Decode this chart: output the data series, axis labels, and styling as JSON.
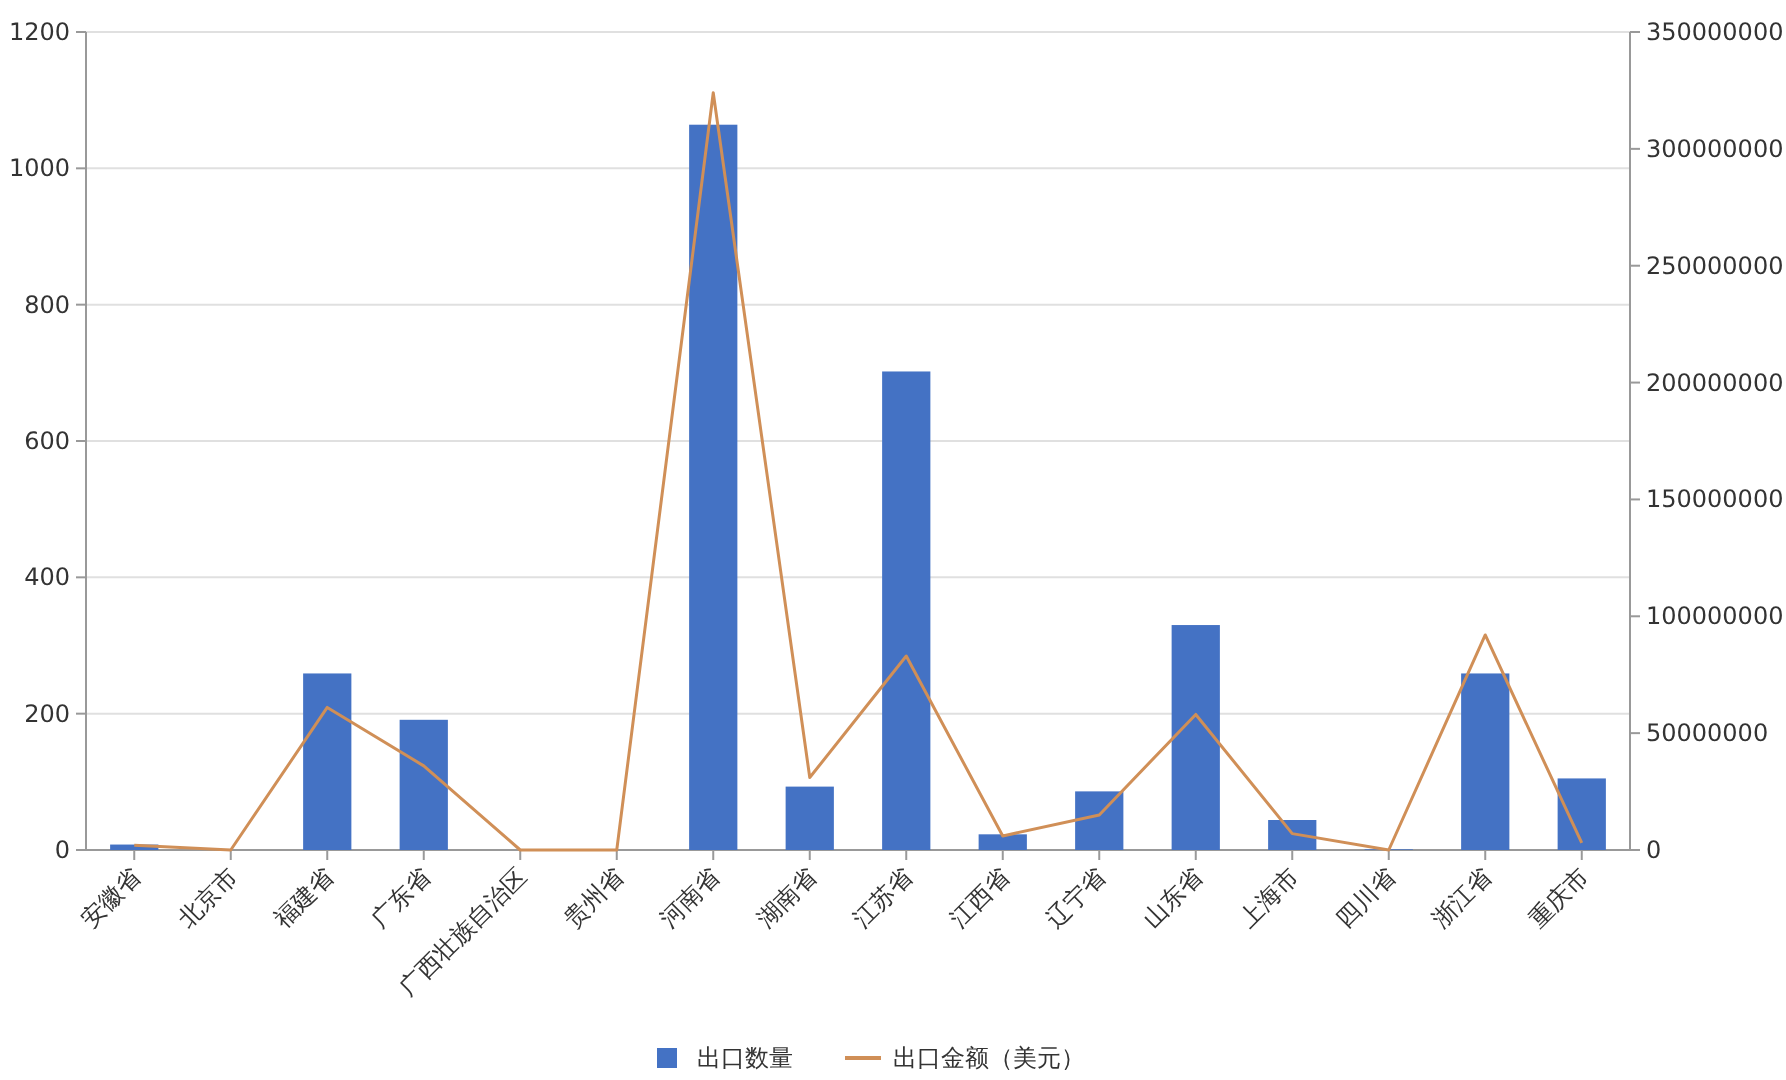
{
  "chart_data": {
    "type": "bar",
    "categories": [
      "安徽省",
      "北京市",
      "福建省",
      "广东省",
      "广西壮族自治区",
      "贵州省",
      "河南省",
      "湖南省",
      "江苏省",
      "江西省",
      "辽宁省",
      "山东省",
      "上海市",
      "四川省",
      "浙江省",
      "重庆市"
    ],
    "series": [
      {
        "name": "出口数量",
        "color": "#4472c4",
        "values": [
          8,
          null,
          259,
          191,
          0,
          null,
          1064,
          93,
          702,
          23,
          86,
          330,
          44,
          1,
          259,
          105
        ]
      },
      {
        "name": "出口金额（美元）",
        "type": "line",
        "axis": "y2",
        "color": "#d08f57",
        "values": [
          2000000,
          0,
          61000000,
          36000000,
          0,
          0,
          324000000,
          31000000,
          83000000,
          6000000,
          15000000,
          58000000,
          7000000,
          0,
          92000000,
          3000000
        ]
      }
    ],
    "ylim": [
      0,
      1200
    ],
    "yticks": [
      0,
      200,
      400,
      600,
      800,
      1000,
      1200
    ],
    "y2lim": [
      0,
      350000000
    ],
    "y2ticks": [
      0,
      50000000,
      100000000,
      150000000,
      200000000,
      250000000,
      300000000,
      350000000
    ],
    "grid": "y",
    "legend": "bottom"
  }
}
